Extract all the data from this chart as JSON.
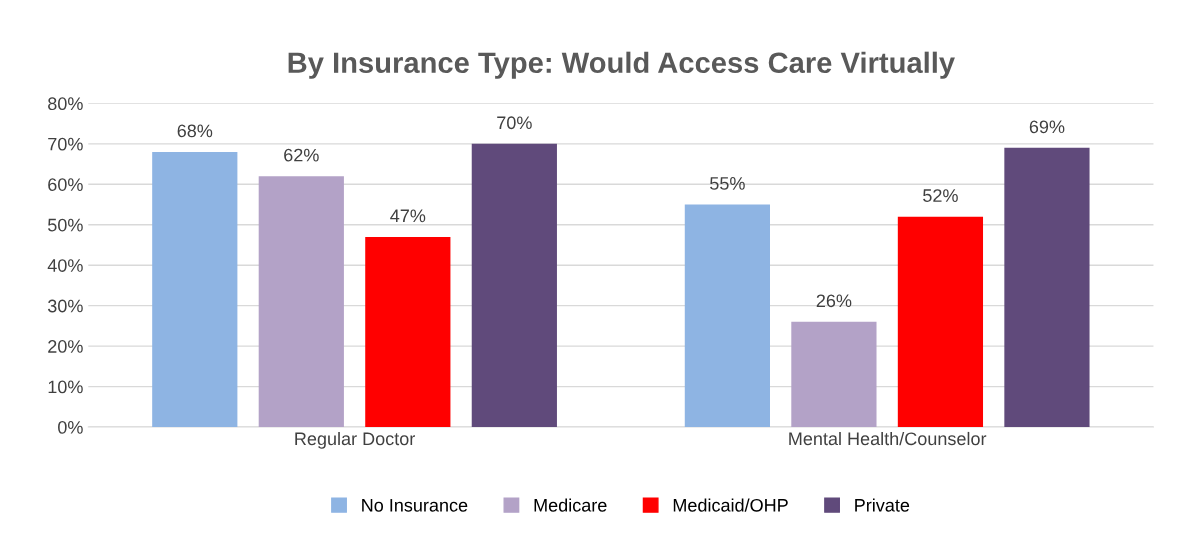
{
  "chart_data": {
    "type": "bar",
    "title": "By Insurance Type: Would Access Care Virtually",
    "categories": [
      "Regular Doctor",
      "Mental Health/Counselor"
    ],
    "series": [
      {
        "name": "No Insurance",
        "color": "#8eb4e3",
        "values": [
          68,
          55
        ],
        "value_labels": [
          "68%",
          "55%"
        ]
      },
      {
        "name": "Medicare",
        "color": "#b3a2c7",
        "values": [
          62,
          26
        ],
        "value_labels": [
          "62%",
          "26%"
        ]
      },
      {
        "name": "Medicaid/OHP",
        "color": "#ff0000",
        "values": [
          47,
          52
        ],
        "value_labels": [
          "47%",
          "52%"
        ]
      },
      {
        "name": "Private",
        "color": "#604a7b",
        "values": [
          70,
          69
        ],
        "value_labels": [
          "70%",
          "69%"
        ]
      }
    ],
    "ylim": [
      0,
      80
    ],
    "yticks": [
      {
        "value": 0,
        "label": "0%"
      },
      {
        "value": 10,
        "label": "10%"
      },
      {
        "value": 20,
        "label": "20%"
      },
      {
        "value": 30,
        "label": "30%"
      },
      {
        "value": 40,
        "label": "40%"
      },
      {
        "value": 50,
        "label": "50%"
      },
      {
        "value": 60,
        "label": "60%"
      },
      {
        "value": 70,
        "label": "70%"
      },
      {
        "value": 80,
        "label": "80%"
      }
    ],
    "grid": "y",
    "legend": "bottom"
  }
}
